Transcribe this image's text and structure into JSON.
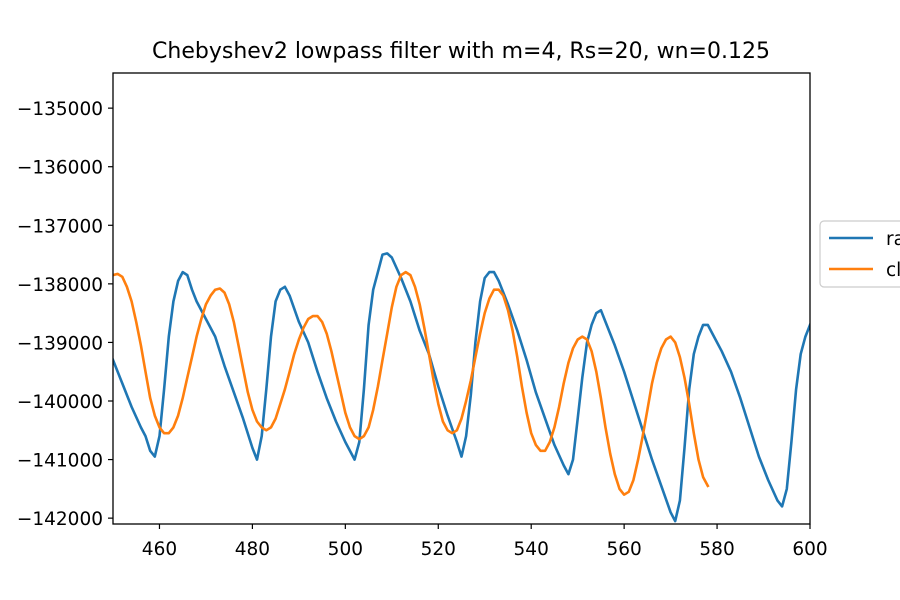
{
  "chart_data": {
    "type": "line",
    "title": "Chebyshev2 lowpass filter with m=4, Rs=20, wn=0.125",
    "xlabel": "",
    "ylabel": "",
    "xlim": [
      450,
      600
    ],
    "ylim": [
      -142100,
      -134400
    ],
    "x_ticks": [
      460,
      480,
      500,
      520,
      540,
      560,
      580,
      600
    ],
    "y_ticks": [
      -135000,
      -136000,
      -137000,
      -138000,
      -139000,
      -140000,
      -141000,
      -142000
    ],
    "x_tick_labels": [
      "460",
      "480",
      "500",
      "520",
      "540",
      "560",
      "580",
      "600"
    ],
    "y_tick_labels": [
      "−135000",
      "−136000",
      "−137000",
      "−138000",
      "−139000",
      "−140000",
      "−141000",
      "−142000"
    ],
    "grid": false,
    "legend_position": "center-right (outside, clipped)",
    "series": [
      {
        "name": "ra",
        "color": "#1f77b4",
        "points": [
          [
            450,
            -139300
          ],
          [
            452,
            -139700
          ],
          [
            454,
            -140100
          ],
          [
            456,
            -140450
          ],
          [
            457,
            -140600
          ],
          [
            458,
            -140850
          ],
          [
            459,
            -140950
          ],
          [
            460,
            -140600
          ],
          [
            461,
            -139800
          ],
          [
            462,
            -138900
          ],
          [
            463,
            -138300
          ],
          [
            464,
            -137950
          ],
          [
            465,
            -137800
          ],
          [
            466,
            -137850
          ],
          [
            467,
            -138100
          ],
          [
            468,
            -138300
          ],
          [
            470,
            -138600
          ],
          [
            472,
            -138900
          ],
          [
            474,
            -139400
          ],
          [
            476,
            -139850
          ],
          [
            478,
            -140300
          ],
          [
            480,
            -140800
          ],
          [
            481,
            -141000
          ],
          [
            482,
            -140600
          ],
          [
            483,
            -139800
          ],
          [
            484,
            -138900
          ],
          [
            485,
            -138300
          ],
          [
            486,
            -138100
          ],
          [
            487,
            -138050
          ],
          [
            488,
            -138200
          ],
          [
            490,
            -138650
          ],
          [
            492,
            -139000
          ],
          [
            494,
            -139500
          ],
          [
            496,
            -139950
          ],
          [
            498,
            -140350
          ],
          [
            500,
            -140700
          ],
          [
            502,
            -141000
          ],
          [
            503,
            -140700
          ],
          [
            504,
            -139800
          ],
          [
            505,
            -138700
          ],
          [
            506,
            -138100
          ],
          [
            507,
            -137800
          ],
          [
            508,
            -137500
          ],
          [
            509,
            -137480
          ],
          [
            510,
            -137550
          ],
          [
            512,
            -137900
          ],
          [
            514,
            -138300
          ],
          [
            516,
            -138800
          ],
          [
            518,
            -139200
          ],
          [
            520,
            -139750
          ],
          [
            522,
            -140250
          ],
          [
            524,
            -140700
          ],
          [
            525,
            -140950
          ],
          [
            526,
            -140600
          ],
          [
            527,
            -139900
          ],
          [
            528,
            -139000
          ],
          [
            529,
            -138300
          ],
          [
            530,
            -137900
          ],
          [
            531,
            -137800
          ],
          [
            532,
            -137800
          ],
          [
            533,
            -137950
          ],
          [
            535,
            -138350
          ],
          [
            537,
            -138800
          ],
          [
            539,
            -139300
          ],
          [
            541,
            -139850
          ],
          [
            543,
            -140300
          ],
          [
            545,
            -140750
          ],
          [
            547,
            -141100
          ],
          [
            548,
            -141250
          ],
          [
            549,
            -141000
          ],
          [
            550,
            -140300
          ],
          [
            551,
            -139600
          ],
          [
            552,
            -139000
          ],
          [
            553,
            -138700
          ],
          [
            554,
            -138500
          ],
          [
            555,
            -138450
          ],
          [
            556,
            -138650
          ],
          [
            558,
            -139050
          ],
          [
            560,
            -139500
          ],
          [
            562,
            -140000
          ],
          [
            564,
            -140500
          ],
          [
            566,
            -141000
          ],
          [
            568,
            -141450
          ],
          [
            570,
            -141900
          ],
          [
            571,
            -142050
          ],
          [
            572,
            -141700
          ],
          [
            573,
            -140800
          ],
          [
            574,
            -139800
          ],
          [
            575,
            -139200
          ],
          [
            576,
            -138900
          ],
          [
            577,
            -138700
          ],
          [
            578,
            -138700
          ],
          [
            579,
            -138850
          ],
          [
            581,
            -139150
          ],
          [
            583,
            -139500
          ],
          [
            585,
            -139950
          ],
          [
            587,
            -140450
          ],
          [
            589,
            -140950
          ],
          [
            591,
            -141350
          ],
          [
            593,
            -141700
          ],
          [
            594,
            -141800
          ],
          [
            595,
            -141500
          ],
          [
            596,
            -140700
          ],
          [
            597,
            -139800
          ],
          [
            598,
            -139200
          ],
          [
            599,
            -138900
          ],
          [
            600,
            -138700
          ]
        ]
      },
      {
        "name": "cl",
        "color": "#ff7f0e",
        "points": [
          [
            450,
            -137850
          ],
          [
            451,
            -137830
          ],
          [
            452,
            -137880
          ],
          [
            453,
            -138050
          ],
          [
            454,
            -138300
          ],
          [
            455,
            -138650
          ],
          [
            456,
            -139050
          ],
          [
            457,
            -139500
          ],
          [
            458,
            -139950
          ],
          [
            459,
            -140250
          ],
          [
            460,
            -140450
          ],
          [
            461,
            -140550
          ],
          [
            462,
            -140550
          ],
          [
            463,
            -140450
          ],
          [
            464,
            -140250
          ],
          [
            465,
            -139950
          ],
          [
            466,
            -139600
          ],
          [
            467,
            -139250
          ],
          [
            468,
            -138900
          ],
          [
            469,
            -138600
          ],
          [
            470,
            -138350
          ],
          [
            471,
            -138200
          ],
          [
            472,
            -138100
          ],
          [
            473,
            -138080
          ],
          [
            474,
            -138150
          ],
          [
            475,
            -138350
          ],
          [
            476,
            -138650
          ],
          [
            477,
            -139050
          ],
          [
            478,
            -139450
          ],
          [
            479,
            -139850
          ],
          [
            480,
            -140150
          ],
          [
            481,
            -140350
          ],
          [
            482,
            -140450
          ],
          [
            483,
            -140500
          ],
          [
            484,
            -140450
          ],
          [
            485,
            -140300
          ],
          [
            486,
            -140050
          ],
          [
            487,
            -139800
          ],
          [
            488,
            -139500
          ],
          [
            489,
            -139200
          ],
          [
            490,
            -138950
          ],
          [
            491,
            -138750
          ],
          [
            492,
            -138600
          ],
          [
            493,
            -138550
          ],
          [
            494,
            -138550
          ],
          [
            495,
            -138650
          ],
          [
            496,
            -138850
          ],
          [
            497,
            -139150
          ],
          [
            498,
            -139500
          ],
          [
            499,
            -139850
          ],
          [
            500,
            -140200
          ],
          [
            501,
            -140450
          ],
          [
            502,
            -140600
          ],
          [
            503,
            -140650
          ],
          [
            504,
            -140600
          ],
          [
            505,
            -140450
          ],
          [
            506,
            -140150
          ],
          [
            507,
            -139750
          ],
          [
            508,
            -139300
          ],
          [
            509,
            -138850
          ],
          [
            510,
            -138400
          ],
          [
            511,
            -138050
          ],
          [
            512,
            -137850
          ],
          [
            513,
            -137800
          ],
          [
            514,
            -137850
          ],
          [
            515,
            -138050
          ],
          [
            516,
            -138350
          ],
          [
            517,
            -138750
          ],
          [
            518,
            -139200
          ],
          [
            519,
            -139650
          ],
          [
            520,
            -140050
          ],
          [
            521,
            -140350
          ],
          [
            522,
            -140500
          ],
          [
            523,
            -140550
          ],
          [
            524,
            -140500
          ],
          [
            525,
            -140300
          ],
          [
            526,
            -140000
          ],
          [
            527,
            -139650
          ],
          [
            528,
            -139250
          ],
          [
            529,
            -138850
          ],
          [
            530,
            -138500
          ],
          [
            531,
            -138250
          ],
          [
            532,
            -138100
          ],
          [
            533,
            -138100
          ],
          [
            534,
            -138200
          ],
          [
            535,
            -138450
          ],
          [
            536,
            -138800
          ],
          [
            537,
            -139250
          ],
          [
            538,
            -139750
          ],
          [
            539,
            -140200
          ],
          [
            540,
            -140550
          ],
          [
            541,
            -140750
          ],
          [
            542,
            -140850
          ],
          [
            543,
            -140850
          ],
          [
            544,
            -140700
          ],
          [
            545,
            -140450
          ],
          [
            546,
            -140100
          ],
          [
            547,
            -139700
          ],
          [
            548,
            -139350
          ],
          [
            549,
            -139100
          ],
          [
            550,
            -138950
          ],
          [
            551,
            -138900
          ],
          [
            552,
            -138950
          ],
          [
            553,
            -139150
          ],
          [
            554,
            -139500
          ],
          [
            555,
            -139950
          ],
          [
            556,
            -140450
          ],
          [
            557,
            -140900
          ],
          [
            558,
            -141250
          ],
          [
            559,
            -141500
          ],
          [
            560,
            -141600
          ],
          [
            561,
            -141550
          ],
          [
            562,
            -141350
          ],
          [
            563,
            -141000
          ],
          [
            564,
            -140600
          ],
          [
            565,
            -140150
          ],
          [
            566,
            -139700
          ],
          [
            567,
            -139350
          ],
          [
            568,
            -139100
          ],
          [
            569,
            -138950
          ],
          [
            570,
            -138900
          ],
          [
            571,
            -139000
          ],
          [
            572,
            -139250
          ],
          [
            573,
            -139600
          ],
          [
            574,
            -140050
          ],
          [
            575,
            -140550
          ],
          [
            576,
            -141000
          ],
          [
            577,
            -141300
          ],
          [
            578,
            -141450
          ]
        ]
      }
    ]
  },
  "legend": {
    "entries": [
      {
        "label": "ra",
        "color": "#1f77b4"
      },
      {
        "label": "cl",
        "color": "#ff7f0e"
      }
    ]
  }
}
